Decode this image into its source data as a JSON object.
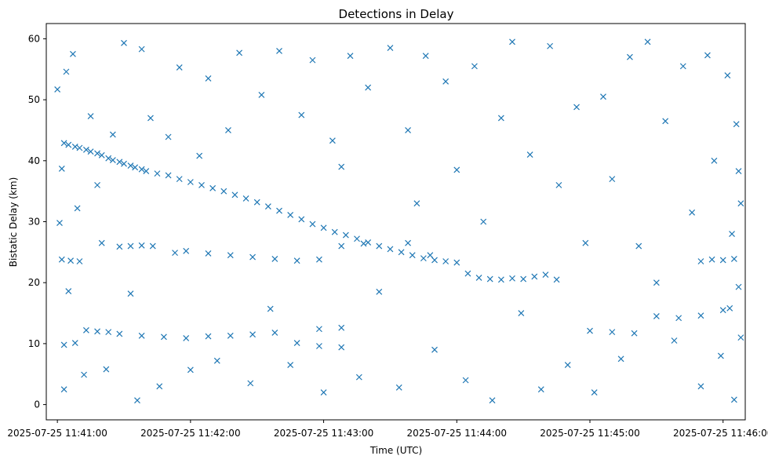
{
  "chart_data": {
    "type": "scatter",
    "title": "Detections in Delay",
    "xlabel": "Time (UTC)",
    "ylabel": "Bistatic Delay (km)",
    "xlim": [
      "2025-07-25 11:40:55",
      "2025-07-25 11:46:10"
    ],
    "ylim": [
      -2.5,
      62.5
    ],
    "xticks": [
      "2025-07-25 11:41:00",
      "2025-07-25 11:42:00",
      "2025-07-25 11:43:00",
      "2025-07-25 11:44:00",
      "2025-07-25 11:45:00",
      "2025-07-25 11:46:00"
    ],
    "yticks": [
      "0",
      "10",
      "20",
      "30",
      "40",
      "50",
      "60"
    ],
    "grid": false,
    "marker": "x",
    "color": "#1f77b4",
    "series": [
      {
        "values_desc": "scatter detections",
        "points": [
          [
            "2025-07-25 11:41:03",
            42.9
          ],
          [
            "2025-07-25 11:41:05",
            42.6
          ],
          [
            "2025-07-25 11:41:08",
            42.3
          ],
          [
            "2025-07-25 11:41:10",
            42.1
          ],
          [
            "2025-07-25 11:41:13",
            41.8
          ],
          [
            "2025-07-25 11:41:15",
            41.5
          ],
          [
            "2025-07-25 11:41:18",
            41.2
          ],
          [
            "2025-07-25 11:41:20",
            40.9
          ],
          [
            "2025-07-25 11:41:23",
            40.4
          ],
          [
            "2025-07-25 11:41:25",
            40.1
          ],
          [
            "2025-07-25 11:41:28",
            39.8
          ],
          [
            "2025-07-25 11:41:30",
            39.5
          ],
          [
            "2025-07-25 11:41:33",
            39.2
          ],
          [
            "2025-07-25 11:41:35",
            38.9
          ],
          [
            "2025-07-25 11:41:38",
            38.6
          ],
          [
            "2025-07-25 11:41:40",
            38.3
          ],
          [
            "2025-07-25 11:41:45",
            37.9
          ],
          [
            "2025-07-25 11:41:50",
            37.6
          ],
          [
            "2025-07-25 11:41:55",
            37.0
          ],
          [
            "2025-07-25 11:42:00",
            36.5
          ],
          [
            "2025-07-25 11:42:05",
            36.0
          ],
          [
            "2025-07-25 11:42:10",
            35.5
          ],
          [
            "2025-07-25 11:42:15",
            35.0
          ],
          [
            "2025-07-25 11:42:20",
            34.4
          ],
          [
            "2025-07-25 11:42:25",
            33.8
          ],
          [
            "2025-07-25 11:42:30",
            33.2
          ],
          [
            "2025-07-25 11:42:35",
            32.5
          ],
          [
            "2025-07-25 11:42:40",
            31.8
          ],
          [
            "2025-07-25 11:42:45",
            31.1
          ],
          [
            "2025-07-25 11:42:50",
            30.4
          ],
          [
            "2025-07-25 11:42:55",
            29.6
          ],
          [
            "2025-07-25 11:43:00",
            29.0
          ],
          [
            "2025-07-25 11:43:05",
            28.3
          ],
          [
            "2025-07-25 11:43:10",
            27.8
          ],
          [
            "2025-07-25 11:43:15",
            27.2
          ],
          [
            "2025-07-25 11:43:20",
            26.6
          ],
          [
            "2025-07-25 11:43:25",
            26.0
          ],
          [
            "2025-07-25 11:43:30",
            25.5
          ],
          [
            "2025-07-25 11:43:35",
            25.0
          ],
          [
            "2025-07-25 11:43:40",
            24.5
          ],
          [
            "2025-07-25 11:43:45",
            24.0
          ],
          [
            "2025-07-25 11:43:50",
            23.7
          ],
          [
            "2025-07-25 11:43:55",
            23.5
          ],
          [
            "2025-07-25 11:44:00",
            23.3
          ],
          [
            "2025-07-25 11:44:05",
            21.5
          ],
          [
            "2025-07-25 11:44:10",
            20.8
          ],
          [
            "2025-07-25 11:44:15",
            20.6
          ],
          [
            "2025-07-25 11:44:20",
            20.5
          ],
          [
            "2025-07-25 11:44:25",
            20.7
          ],
          [
            "2025-07-25 11:44:30",
            20.6
          ],
          [
            "2025-07-25 11:44:35",
            21.0
          ],
          [
            "2025-07-25 11:44:40",
            21.3
          ],
          [
            "2025-07-25 11:41:02",
            23.8
          ],
          [
            "2025-07-25 11:41:06",
            23.6
          ],
          [
            "2025-07-25 11:41:10",
            23.5
          ],
          [
            "2025-07-25 11:41:28",
            25.9
          ],
          [
            "2025-07-25 11:41:33",
            26.0
          ],
          [
            "2025-07-25 11:41:38",
            26.1
          ],
          [
            "2025-07-25 11:41:43",
            26.0
          ],
          [
            "2025-07-25 11:41:53",
            24.9
          ],
          [
            "2025-07-25 11:41:58",
            25.2
          ],
          [
            "2025-07-25 11:42:08",
            24.8
          ],
          [
            "2025-07-25 11:42:18",
            24.5
          ],
          [
            "2025-07-25 11:42:28",
            24.2
          ],
          [
            "2025-07-25 11:42:38",
            23.9
          ],
          [
            "2025-07-25 11:42:48",
            23.6
          ],
          [
            "2025-07-25 11:42:58",
            23.8
          ],
          [
            "2025-07-25 11:43:08",
            26.0
          ],
          [
            "2025-07-25 11:43:18",
            26.4
          ],
          [
            "2025-07-25 11:43:38",
            26.5
          ],
          [
            "2025-07-25 11:43:48",
            24.5
          ],
          [
            "2025-07-25 11:44:45",
            20.5
          ],
          [
            "2025-07-25 11:45:50",
            23.5
          ],
          [
            "2025-07-25 11:45:55",
            23.8
          ],
          [
            "2025-07-25 11:46:00",
            23.7
          ],
          [
            "2025-07-25 11:46:05",
            23.9
          ],
          [
            "2025-07-25 11:41:03",
            9.8
          ],
          [
            "2025-07-25 11:41:08",
            10.1
          ],
          [
            "2025-07-25 11:41:13",
            12.2
          ],
          [
            "2025-07-25 11:41:18",
            12.0
          ],
          [
            "2025-07-25 11:41:23",
            11.9
          ],
          [
            "2025-07-25 11:41:28",
            11.6
          ],
          [
            "2025-07-25 11:41:38",
            11.3
          ],
          [
            "2025-07-25 11:41:48",
            11.1
          ],
          [
            "2025-07-25 11:41:58",
            10.9
          ],
          [
            "2025-07-25 11:42:08",
            11.2
          ],
          [
            "2025-07-25 11:42:18",
            11.3
          ],
          [
            "2025-07-25 11:42:28",
            11.5
          ],
          [
            "2025-07-25 11:42:38",
            11.8
          ],
          [
            "2025-07-25 11:42:48",
            10.1
          ],
          [
            "2025-07-25 11:42:58",
            9.6
          ],
          [
            "2025-07-25 11:43:08",
            9.4
          ],
          [
            "2025-07-25 11:42:58",
            12.4
          ],
          [
            "2025-07-25 11:43:08",
            12.6
          ],
          [
            "2025-07-25 11:45:00",
            12.1
          ],
          [
            "2025-07-25 11:45:10",
            11.9
          ],
          [
            "2025-07-25 11:45:20",
            11.7
          ],
          [
            "2025-07-25 11:45:30",
            14.5
          ],
          [
            "2025-07-25 11:45:40",
            14.2
          ],
          [
            "2025-07-25 11:45:50",
            14.6
          ],
          [
            "2025-07-25 11:46:00",
            15.5
          ],
          [
            "2025-07-25 11:46:03",
            15.8
          ],
          [
            "2025-07-25 11:41:00",
            51.7
          ],
          [
            "2025-07-25 11:41:01",
            29.8
          ],
          [
            "2025-07-25 11:41:02",
            38.7
          ],
          [
            "2025-07-25 11:41:03",
            2.5
          ],
          [
            "2025-07-25 11:41:04",
            54.6
          ],
          [
            "2025-07-25 11:41:05",
            18.6
          ],
          [
            "2025-07-25 11:41:07",
            57.5
          ],
          [
            "2025-07-25 11:41:09",
            32.2
          ],
          [
            "2025-07-25 11:41:12",
            4.9
          ],
          [
            "2025-07-25 11:41:15",
            47.3
          ],
          [
            "2025-07-25 11:41:18",
            36.0
          ],
          [
            "2025-07-25 11:41:20",
            26.5
          ],
          [
            "2025-07-25 11:41:22",
            5.8
          ],
          [
            "2025-07-25 11:41:25",
            44.3
          ],
          [
            "2025-07-25 11:41:30",
            59.3
          ],
          [
            "2025-07-25 11:41:33",
            18.2
          ],
          [
            "2025-07-25 11:41:36",
            0.7
          ],
          [
            "2025-07-25 11:41:38",
            58.3
          ],
          [
            "2025-07-25 11:41:42",
            47.0
          ],
          [
            "2025-07-25 11:41:46",
            3.0
          ],
          [
            "2025-07-25 11:41:50",
            43.9
          ],
          [
            "2025-07-25 11:41:55",
            55.3
          ],
          [
            "2025-07-25 11:42:00",
            5.7
          ],
          [
            "2025-07-25 11:42:04",
            40.8
          ],
          [
            "2025-07-25 11:42:08",
            53.5
          ],
          [
            "2025-07-25 11:42:12",
            7.2
          ],
          [
            "2025-07-25 11:42:17",
            45.0
          ],
          [
            "2025-07-25 11:42:22",
            57.7
          ],
          [
            "2025-07-25 11:42:27",
            3.5
          ],
          [
            "2025-07-25 11:42:32",
            50.8
          ],
          [
            "2025-07-25 11:42:36",
            15.7
          ],
          [
            "2025-07-25 11:42:40",
            58.0
          ],
          [
            "2025-07-25 11:42:45",
            6.5
          ],
          [
            "2025-07-25 11:42:50",
            47.5
          ],
          [
            "2025-07-25 11:42:55",
            56.5
          ],
          [
            "2025-07-25 11:43:00",
            2.0
          ],
          [
            "2025-07-25 11:43:04",
            43.3
          ],
          [
            "2025-07-25 11:43:08",
            39.0
          ],
          [
            "2025-07-25 11:43:12",
            57.2
          ],
          [
            "2025-07-25 11:43:16",
            4.5
          ],
          [
            "2025-07-25 11:43:20",
            52.0
          ],
          [
            "2025-07-25 11:43:25",
            18.5
          ],
          [
            "2025-07-25 11:43:30",
            58.5
          ],
          [
            "2025-07-25 11:43:34",
            2.8
          ],
          [
            "2025-07-25 11:43:38",
            45.0
          ],
          [
            "2025-07-25 11:43:42",
            33.0
          ],
          [
            "2025-07-25 11:43:46",
            57.2
          ],
          [
            "2025-07-25 11:43:50",
            9.0
          ],
          [
            "2025-07-25 11:43:55",
            53.0
          ],
          [
            "2025-07-25 11:44:00",
            38.5
          ],
          [
            "2025-07-25 11:44:04",
            4.0
          ],
          [
            "2025-07-25 11:44:08",
            55.5
          ],
          [
            "2025-07-25 11:44:12",
            30.0
          ],
          [
            "2025-07-25 11:44:16",
            0.7
          ],
          [
            "2025-07-25 11:44:20",
            47.0
          ],
          [
            "2025-07-25 11:44:25",
            59.5
          ],
          [
            "2025-07-25 11:44:29",
            15.0
          ],
          [
            "2025-07-25 11:44:33",
            41.0
          ],
          [
            "2025-07-25 11:44:38",
            2.5
          ],
          [
            "2025-07-25 11:44:42",
            58.8
          ],
          [
            "2025-07-25 11:44:46",
            36.0
          ],
          [
            "2025-07-25 11:44:50",
            6.5
          ],
          [
            "2025-07-25 11:44:54",
            48.8
          ],
          [
            "2025-07-25 11:44:58",
            26.5
          ],
          [
            "2025-07-25 11:45:02",
            2.0
          ],
          [
            "2025-07-25 11:45:06",
            50.5
          ],
          [
            "2025-07-25 11:45:10",
            37.0
          ],
          [
            "2025-07-25 11:45:14",
            7.5
          ],
          [
            "2025-07-25 11:45:18",
            57.0
          ],
          [
            "2025-07-25 11:45:22",
            26.0
          ],
          [
            "2025-07-25 11:45:26",
            59.5
          ],
          [
            "2025-07-25 11:45:30",
            20.0
          ],
          [
            "2025-07-25 11:45:34",
            46.5
          ],
          [
            "2025-07-25 11:45:38",
            10.5
          ],
          [
            "2025-07-25 11:45:42",
            55.5
          ],
          [
            "2025-07-25 11:45:46",
            31.5
          ],
          [
            "2025-07-25 11:45:50",
            3.0
          ],
          [
            "2025-07-25 11:45:53",
            57.3
          ],
          [
            "2025-07-25 11:45:56",
            40.0
          ],
          [
            "2025-07-25 11:45:59",
            8.0
          ],
          [
            "2025-07-25 11:46:02",
            54.0
          ],
          [
            "2025-07-25 11:46:04",
            28.0
          ],
          [
            "2025-07-25 11:46:05",
            0.8
          ],
          [
            "2025-07-25 11:46:06",
            46.0
          ],
          [
            "2025-07-25 11:46:07",
            38.3
          ],
          [
            "2025-07-25 11:46:07",
            19.3
          ],
          [
            "2025-07-25 11:46:08",
            33.0
          ],
          [
            "2025-07-25 11:46:08",
            11.0
          ]
        ]
      }
    ]
  }
}
